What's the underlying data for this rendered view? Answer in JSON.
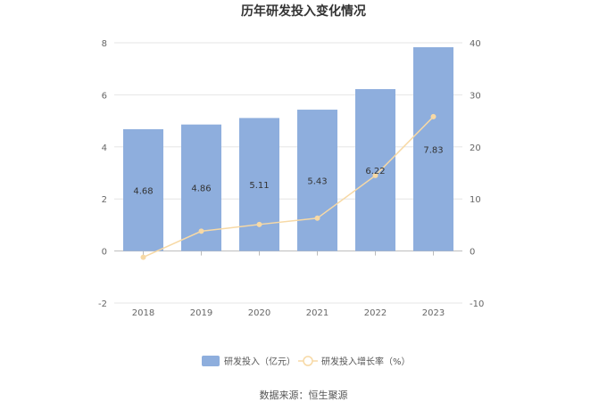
{
  "chart_data": {
    "type": "bar",
    "title": "历年研发投入变化情况",
    "categories": [
      "2018",
      "2019",
      "2020",
      "2021",
      "2022",
      "2023"
    ],
    "series": [
      {
        "name": "研发投入（亿元）",
        "type": "bar",
        "axis": "left",
        "color": "#8eaedd",
        "values": [
          4.68,
          4.86,
          5.11,
          5.43,
          6.22,
          7.83
        ],
        "labels": [
          "4.68",
          "4.86",
          "5.11",
          "5.43",
          "6.22",
          "7.83"
        ]
      },
      {
        "name": "研发投入增长率（%）",
        "type": "line",
        "axis": "right",
        "color": "#f7d9a5",
        "values": [
          -1.2,
          3.8,
          5.1,
          6.3,
          14.5,
          25.8
        ]
      }
    ],
    "y_left": {
      "min": -2,
      "max": 8,
      "ticks": [
        "-2",
        "0",
        "2",
        "4",
        "6",
        "8"
      ]
    },
    "y_right": {
      "min": -10,
      "max": 40,
      "ticks": [
        "-10",
        "0",
        "10",
        "20",
        "30",
        "40"
      ]
    },
    "grid": true,
    "legend_position": "bottom"
  },
  "source": "数据来源：恒生聚源"
}
